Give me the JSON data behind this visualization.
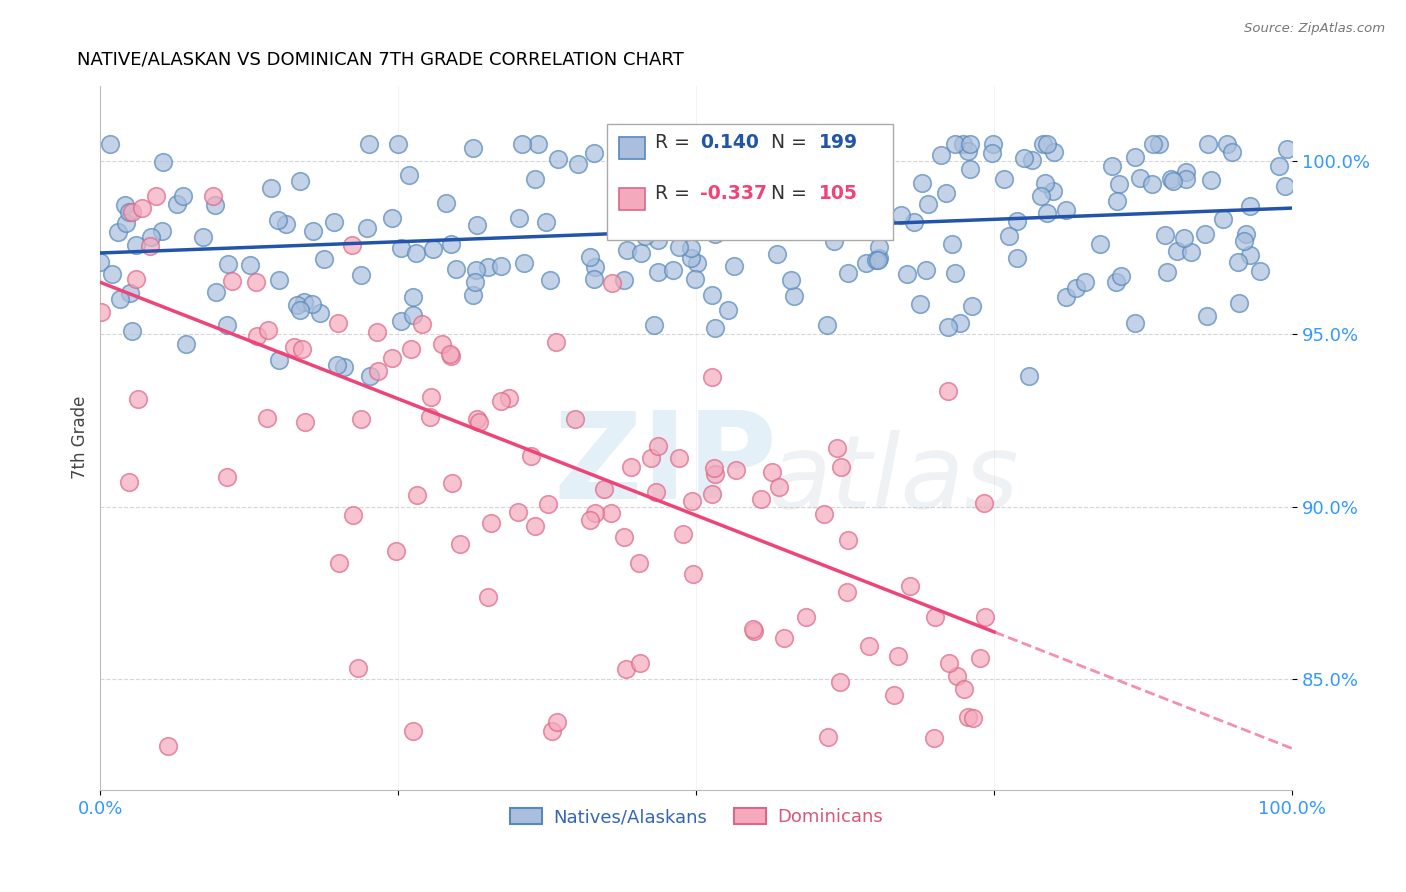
{
  "title": "NATIVE/ALASKAN VS DOMINICAN 7TH GRADE CORRELATION CHART",
  "source": "Source: ZipAtlas.com",
  "ylabel": "7th Grade",
  "blue_R": 0.14,
  "blue_N": 199,
  "pink_R": -0.337,
  "pink_N": 105,
  "blue_color": "#AABFDD",
  "pink_color": "#F4AABC",
  "blue_edge_color": "#5588BB",
  "pink_edge_color": "#DD6688",
  "blue_line_color": "#2255AA",
  "pink_line_color": "#EE4477",
  "axis_label_color": "#3399FF",
  "title_color": "#000000",
  "watermark_zip": "ZIP",
  "watermark_atlas": "atlas",
  "ytick_labels": [
    "100.0%",
    "95.0%",
    "90.0%",
    "85.0%"
  ],
  "ytick_values": [
    1.0,
    0.95,
    0.9,
    0.85
  ],
  "xmin": 0.0,
  "xmax": 1.0,
  "ymin": 0.818,
  "ymax": 1.022,
  "blue_intercept": 0.9735,
  "blue_slope": 0.013,
  "pink_intercept": 0.965,
  "pink_slope": -0.135,
  "legend_entries": [
    "Natives/Alaskans",
    "Dominicans"
  ],
  "legend_blue_label_color": "#3366BB",
  "legend_pink_label_color": "#DD5577"
}
